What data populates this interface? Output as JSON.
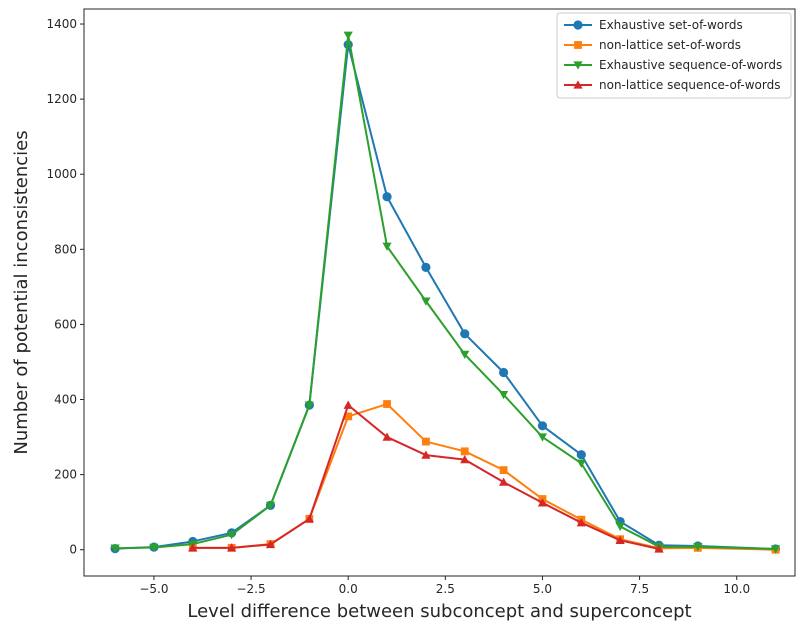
{
  "chart_data": {
    "type": "line",
    "xlabel": "Level difference between subconcept and superconcept",
    "ylabel": "Number of potential inconsistencies",
    "xlim": [
      -6.8,
      11.5
    ],
    "ylim": [
      -70,
      1440
    ],
    "xticks": [
      -5,
      -2.5,
      0,
      2.5,
      5,
      7.5,
      10
    ],
    "xtick_labels": [
      "−5.0",
      "−2.5",
      "0.0",
      "2.5",
      "5.0",
      "7.5",
      "10.0"
    ],
    "yticks": [
      0,
      200,
      400,
      600,
      800,
      1000,
      1200,
      1400
    ],
    "ytick_labels": [
      "0",
      "200",
      "400",
      "600",
      "800",
      "1000",
      "1200",
      "1400"
    ],
    "grid": false,
    "legend_position": "top-right",
    "series": [
      {
        "name": "Exhaustive set-of-words",
        "color": "#1f77b4",
        "marker": "circle",
        "x": [
          -6,
          -5,
          -4,
          -3,
          -2,
          -1,
          0,
          1,
          2,
          3,
          4,
          5,
          6,
          7,
          8,
          9,
          11
        ],
        "y": [
          3,
          7,
          22,
          45,
          118,
          385,
          1345,
          940,
          752,
          575,
          472,
          330,
          253,
          75,
          12,
          10,
          2
        ]
      },
      {
        "name": "non-lattice set-of-words",
        "color": "#ff7f0e",
        "marker": "square",
        "x": [
          -4,
          -3,
          -2,
          -1,
          0,
          1,
          2,
          3,
          4,
          5,
          6,
          7,
          8,
          9,
          11
        ],
        "y": [
          5,
          5,
          15,
          82,
          355,
          388,
          288,
          262,
          212,
          135,
          80,
          28,
          4,
          5,
          0
        ]
      },
      {
        "name": "Exhaustive sequence-of-words",
        "color": "#2ca02c",
        "marker": "triangle-down",
        "x": [
          -6,
          -5,
          -4,
          -3,
          -2,
          -1,
          0,
          1,
          2,
          3,
          4,
          5,
          6,
          7,
          8,
          9,
          11
        ],
        "y": [
          4,
          6,
          15,
          40,
          118,
          385,
          1370,
          808,
          662,
          520,
          413,
          300,
          230,
          62,
          8,
          8,
          2
        ]
      },
      {
        "name": "non-lattice sequence-of-words",
        "color": "#d62728",
        "marker": "triangle-up",
        "x": [
          -4,
          -3,
          -2,
          -1,
          0,
          1,
          2,
          3,
          4,
          5,
          6,
          7,
          8
        ],
        "y": [
          5,
          5,
          14,
          82,
          385,
          300,
          252,
          240,
          180,
          125,
          72,
          25,
          2
        ]
      }
    ]
  }
}
